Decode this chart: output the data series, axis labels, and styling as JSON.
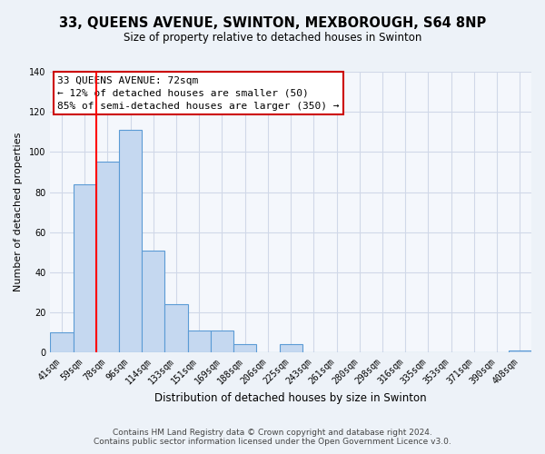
{
  "title1": "33, QUEENS AVENUE, SWINTON, MEXBOROUGH, S64 8NP",
  "title2": "Size of property relative to detached houses in Swinton",
  "xlabel": "Distribution of detached houses by size in Swinton",
  "ylabel": "Number of detached properties",
  "footer1": "Contains HM Land Registry data © Crown copyright and database right 2024.",
  "footer2": "Contains public sector information licensed under the Open Government Licence v3.0.",
  "bar_labels": [
    "41sqm",
    "59sqm",
    "78sqm",
    "96sqm",
    "114sqm",
    "133sqm",
    "151sqm",
    "169sqm",
    "188sqm",
    "206sqm",
    "225sqm",
    "243sqm",
    "261sqm",
    "280sqm",
    "298sqm",
    "316sqm",
    "335sqm",
    "353sqm",
    "371sqm",
    "390sqm",
    "408sqm"
  ],
  "bar_values": [
    10,
    84,
    95,
    111,
    51,
    24,
    11,
    11,
    4,
    0,
    4,
    0,
    0,
    0,
    0,
    0,
    0,
    0,
    0,
    0,
    1
  ],
  "bar_color": "#c5d8f0",
  "bar_edge_color": "#5b9bd5",
  "ylim": [
    0,
    140
  ],
  "yticks": [
    0,
    20,
    40,
    60,
    80,
    100,
    120,
    140
  ],
  "red_line_x": 1.5,
  "annotation_title": "33 QUEENS AVENUE: 72sqm",
  "annotation_line1": "← 12% of detached houses are smaller (50)",
  "annotation_line2": "85% of semi-detached houses are larger (350) →",
  "grid_color": "#d0d8e8",
  "bg_color": "#edf2f8",
  "plot_bg_color": "#f4f7fc",
  "title1_fontsize": 10.5,
  "title2_fontsize": 8.5,
  "xlabel_fontsize": 8.5,
  "ylabel_fontsize": 8.0,
  "tick_fontsize": 7.0,
  "annotation_fontsize": 8.0,
  "footer_fontsize": 6.5
}
